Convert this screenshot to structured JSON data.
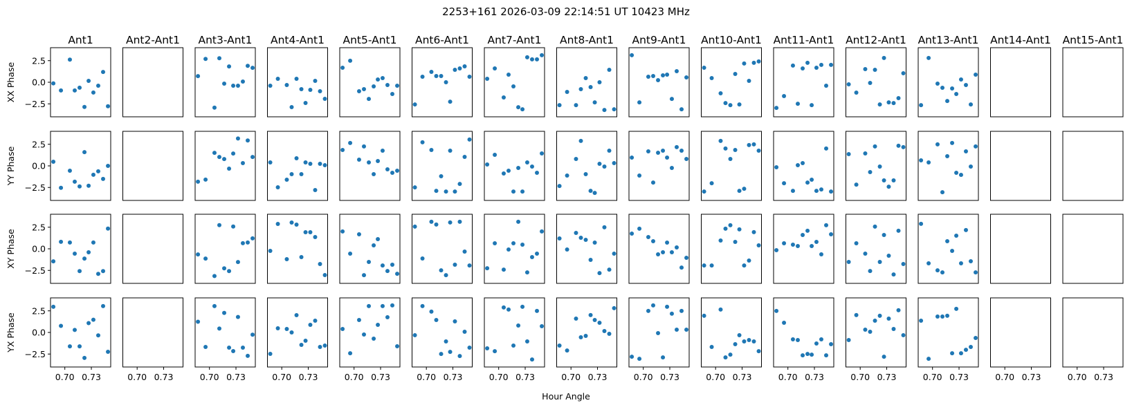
{
  "chart_data": {
    "type": "scatter",
    "title": "2253+161  2026-03-09 22:14:51 UT  10423 MHz",
    "xlabel": "Hour Angle",
    "row_labels": [
      "XX Phase",
      "YY Phase",
      "XY Phase",
      "YX Phase"
    ],
    "row_keys": [
      "XX",
      "YY",
      "XY",
      "YX"
    ],
    "xlim": [
      0.6838,
      0.7519
    ],
    "ylim": [
      -4,
      4
    ],
    "xticks": [
      0.7,
      0.73
    ],
    "xtick_labels": [
      "0.70",
      "0.73"
    ],
    "yticks": [
      2.5,
      0.0,
      -2.5
    ],
    "ytick_labels": [
      "2.5",
      "0.0",
      "−2.5"
    ],
    "grid": false,
    "marker_color": "#1f77b4",
    "x": [
      0.687,
      0.6956,
      0.7057,
      0.7112,
      0.7167,
      0.7222,
      0.7269,
      0.7323,
      0.7378,
      0.7433,
      0.7488
    ],
    "panels": [
      {
        "title": "Ant1",
        "XX": [
          -0.13,
          -0.95,
          2.62,
          -0.95,
          -0.63,
          -2.86,
          0.16,
          -1.19,
          -0.4,
          1.19,
          -2.78
        ],
        "YY": [
          0.48,
          -2.54,
          -0.56,
          -1.83,
          -2.38,
          1.59,
          -2.3,
          -1.03,
          -0.63,
          -1.51,
          0.0
        ],
        "XY": [
          -1.45,
          0.81,
          0.73,
          -0.56,
          -2.58,
          -1.13,
          -0.4,
          0.73,
          -2.9,
          -2.58,
          2.34
        ],
        "YX": [
          2.97,
          0.76,
          -1.61,
          0.29,
          -1.61,
          -2.95,
          1.08,
          1.47,
          -0.34,
          3.05,
          -2.24
        ]
      },
      {
        "title": "Ant2-Ant1",
        "XX": [],
        "YY": [],
        "XY": [],
        "YX": []
      },
      {
        "title": "Ant3-Ant1",
        "XX": [
          0.71,
          2.7,
          -2.94,
          2.78,
          -0.16,
          1.83,
          -0.4,
          -0.4,
          0.08,
          1.9,
          1.67
        ],
        "YY": [
          -1.83,
          -1.59,
          1.51,
          1.03,
          0.79,
          -0.32,
          1.43,
          3.17,
          0.32,
          2.94,
          1.03
        ],
        "XY": [
          -0.65,
          -1.13,
          -3.15,
          2.74,
          -2.26,
          -2.58,
          2.58,
          -1.53,
          0.65,
          0.73,
          1.21
        ],
        "YX": [
          1.24,
          -1.68,
          3.05,
          0.45,
          2.26,
          -1.76,
          -2.16,
          1.79,
          -1.76,
          -2.71,
          -0.26
        ]
      },
      {
        "title": "Ant4-Ant1",
        "XX": [
          -0.4,
          0.4,
          -0.32,
          -2.88,
          0.4,
          -0.8,
          -2.4,
          -0.88,
          0.16,
          -1.04,
          -1.92
        ],
        "YY": [
          0.4,
          -2.48,
          -1.6,
          -0.96,
          0.88,
          -0.96,
          0.4,
          0.24,
          -2.8,
          0.24,
          0.08
        ],
        "XY": [
          -0.24,
          2.88,
          -1.2,
          3.04,
          2.8,
          -0.96,
          1.92,
          1.92,
          1.36,
          -1.76,
          -3.04
        ],
        "YX": [
          -2.48,
          0.48,
          0.4,
          0.0,
          2.0,
          -1.44,
          -0.96,
          0.88,
          1.36,
          -1.68,
          -1.52
        ]
      },
      {
        "title": "Ant5-Ant1",
        "XX": [
          1.68,
          2.49,
          -1.04,
          -0.8,
          -1.93,
          -0.48,
          0.32,
          0.48,
          -0.32,
          -1.36,
          -0.4
        ],
        "YY": [
          1.84,
          2.65,
          0.72,
          2.25,
          0.4,
          -0.96,
          0.56,
          1.76,
          -0.4,
          -0.8,
          -0.56
        ],
        "XY": [
          2.01,
          -0.56,
          1.68,
          -3.05,
          -1.52,
          0.4,
          1.12,
          -1.93,
          -2.57,
          -1.84,
          -2.89
        ],
        "YX": [
          0.4,
          -2.41,
          1.44,
          -0.24,
          3.05,
          -0.72,
          0.88,
          3.05,
          1.76,
          3.13,
          -1.6
        ]
      },
      {
        "title": "Ant6-Ant1",
        "XX": [
          -2.57,
          0.64,
          1.2,
          0.72,
          0.72,
          0.0,
          -2.25,
          1.44,
          1.6,
          1.84,
          0.64
        ],
        "YY": [
          -2.49,
          2.73,
          1.84,
          -2.89,
          -1.2,
          -2.97,
          1.76,
          -2.97,
          -2.09,
          1.04,
          3.05
        ],
        "XY": [
          2.57,
          -1.12,
          3.13,
          2.81,
          -2.49,
          -3.05,
          3.05,
          -1.84,
          3.13,
          -0.32,
          -1.93
        ],
        "YX": [
          -0.32,
          3.05,
          2.41,
          1.44,
          -2.49,
          -1.04,
          -2.25,
          1.28,
          -2.73,
          0.08,
          -1.76
        ]
      },
      {
        "title": "Ant7-Ant1",
        "XX": [
          0.4,
          1.6,
          -1.76,
          0.88,
          -0.48,
          -2.89,
          -3.13,
          2.89,
          2.65,
          2.65,
          3.13
        ],
        "YY": [
          0.16,
          1.28,
          -0.88,
          -0.56,
          -2.97,
          -0.24,
          -2.97,
          0.4,
          -0.08,
          -0.8,
          1.44
        ],
        "XY": [
          -2.25,
          0.64,
          -2.41,
          -0.08,
          0.64,
          3.13,
          0.48,
          -2.73,
          -0.96,
          -0.56,
          2.01
        ],
        "YX": [
          -1.84,
          -2.17,
          2.89,
          2.65,
          -1.52,
          0.8,
          2.97,
          -1.04,
          -3.13,
          2.49,
          0.72
        ]
      },
      {
        "title": "Ant8-Ant1",
        "XX": [
          -2.65,
          -1.12,
          -2.65,
          -0.8,
          0.48,
          -0.56,
          -2.33,
          0.0,
          -3.21,
          1.44,
          -3.13
        ],
        "YY": [
          -2.33,
          -1.12,
          0.8,
          2.89,
          -0.96,
          -2.89,
          -3.13,
          0.24,
          -0.08,
          1.76,
          0.32
        ],
        "XY": [
          1.2,
          -0.08,
          1.84,
          1.28,
          1.04,
          -1.28,
          0.72,
          -2.81,
          2.49,
          -2.41,
          -0.56
        ],
        "YX": [
          -1.52,
          -2.09,
          1.6,
          -0.56,
          -0.4,
          2.01,
          1.44,
          1.12,
          0.16,
          -0.16,
          2.81
        ]
      },
      {
        "title": "Ant9-Ant1",
        "XX": [
          3.13,
          -2.33,
          0.64,
          0.72,
          0.24,
          0.8,
          0.88,
          -1.93,
          1.28,
          -3.13,
          0.56
        ],
        "YY": [
          0.96,
          -1.12,
          1.68,
          -1.93,
          1.52,
          1.76,
          0.96,
          -0.24,
          2.17,
          1.76,
          0.8
        ],
        "XY": [
          1.76,
          2.33,
          1.36,
          0.88,
          -0.64,
          -0.4,
          0.72,
          -0.4,
          0.16,
          -2.17,
          -1.04
        ],
        "YX": [
          -2.81,
          -3.05,
          2.49,
          3.13,
          -0.08,
          -2.89,
          2.97,
          2.17,
          0.32,
          2.49,
          0.32
        ]
      },
      {
        "title": "Ant10-Ant1",
        "XX": [
          1.68,
          0.48,
          -1.28,
          -2.41,
          -2.65,
          0.96,
          -2.57,
          2.17,
          0.16,
          2.25,
          2.41
        ],
        "YY": [
          -2.97,
          -2.01,
          2.89,
          2.01,
          0.8,
          1.84,
          -2.89,
          -2.65,
          2.41,
          2.49,
          1.76
        ],
        "XY": [
          -1.93,
          -1.93,
          0.96,
          2.33,
          2.73,
          0.8,
          2.25,
          -1.93,
          -1.36,
          1.93,
          0.4
        ],
        "YX": [
          1.93,
          -1.68,
          2.65,
          -2.89,
          -2.57,
          -1.36,
          -0.32,
          -1.04,
          -0.88,
          -1.04,
          -2.17
        ]
      },
      {
        "title": "Ant11-Ant1",
        "XX": [
          -2.97,
          -1.6,
          1.93,
          -2.49,
          1.6,
          2.25,
          -2.65,
          1.68,
          2.01,
          -0.4,
          2.01
        ],
        "YY": [
          -0.16,
          -2.01,
          -2.89,
          0.08,
          0.32,
          -1.93,
          -1.6,
          -2.89,
          -2.73,
          2.01,
          -2.97
        ],
        "XY": [
          -0.16,
          0.64,
          0.48,
          0.32,
          1.6,
          2.09,
          0.32,
          0.8,
          -0.64,
          2.73,
          1.68
        ],
        "YX": [
          2.49,
          1.12,
          -0.8,
          -0.88,
          -2.65,
          -2.49,
          -2.57,
          -1.28,
          -0.8,
          -2.65,
          -1.36
        ]
      },
      {
        "title": "Ant12-Ant1",
        "XX": [
          -0.24,
          -1.2,
          1.52,
          -0.08,
          1.44,
          -2.57,
          2.81,
          -2.33,
          -2.41,
          -1.84,
          1.04
        ],
        "YY": [
          1.36,
          -2.17,
          1.44,
          -0.72,
          2.25,
          -0.08,
          -1.68,
          -2.41,
          -1.68,
          2.33,
          2.17
        ],
        "XY": [
          -1.52,
          0.64,
          -0.56,
          -2.57,
          2.57,
          -1.52,
          1.6,
          -0.8,
          -2.97,
          2.09,
          -1.76
        ],
        "YX": [
          -0.88,
          2.01,
          0.32,
          0.08,
          1.36,
          1.93,
          -2.81,
          1.6,
          0.4,
          2.57,
          -0.32
        ]
      },
      {
        "title": "Ant13-Ant1",
        "XX": [
          -2.65,
          2.81,
          -0.16,
          -0.64,
          -2.17,
          -0.72,
          -1.36,
          0.32,
          -0.32,
          -2.57,
          0.88
        ],
        "YY": [
          0.64,
          0.4,
          2.49,
          -3.05,
          1.12,
          2.65,
          -0.8,
          -1.04,
          1.68,
          -0.08,
          2.25
        ],
        "XY": [
          2.89,
          -1.68,
          -2.49,
          -2.73,
          0.88,
          -0.24,
          1.52,
          -1.68,
          2.17,
          -1.44,
          -2.73
        ],
        "YX": [
          1.36,
          -3.05,
          1.84,
          1.84,
          1.93,
          -2.41,
          2.73,
          -2.41,
          -2.01,
          -1.68,
          -0.64
        ]
      },
      {
        "title": "Ant14-Ant1",
        "XX": [],
        "YY": [],
        "XY": [],
        "YX": []
      },
      {
        "title": "Ant15-Ant1",
        "XX": [],
        "YY": [],
        "XY": [],
        "YX": []
      }
    ]
  }
}
